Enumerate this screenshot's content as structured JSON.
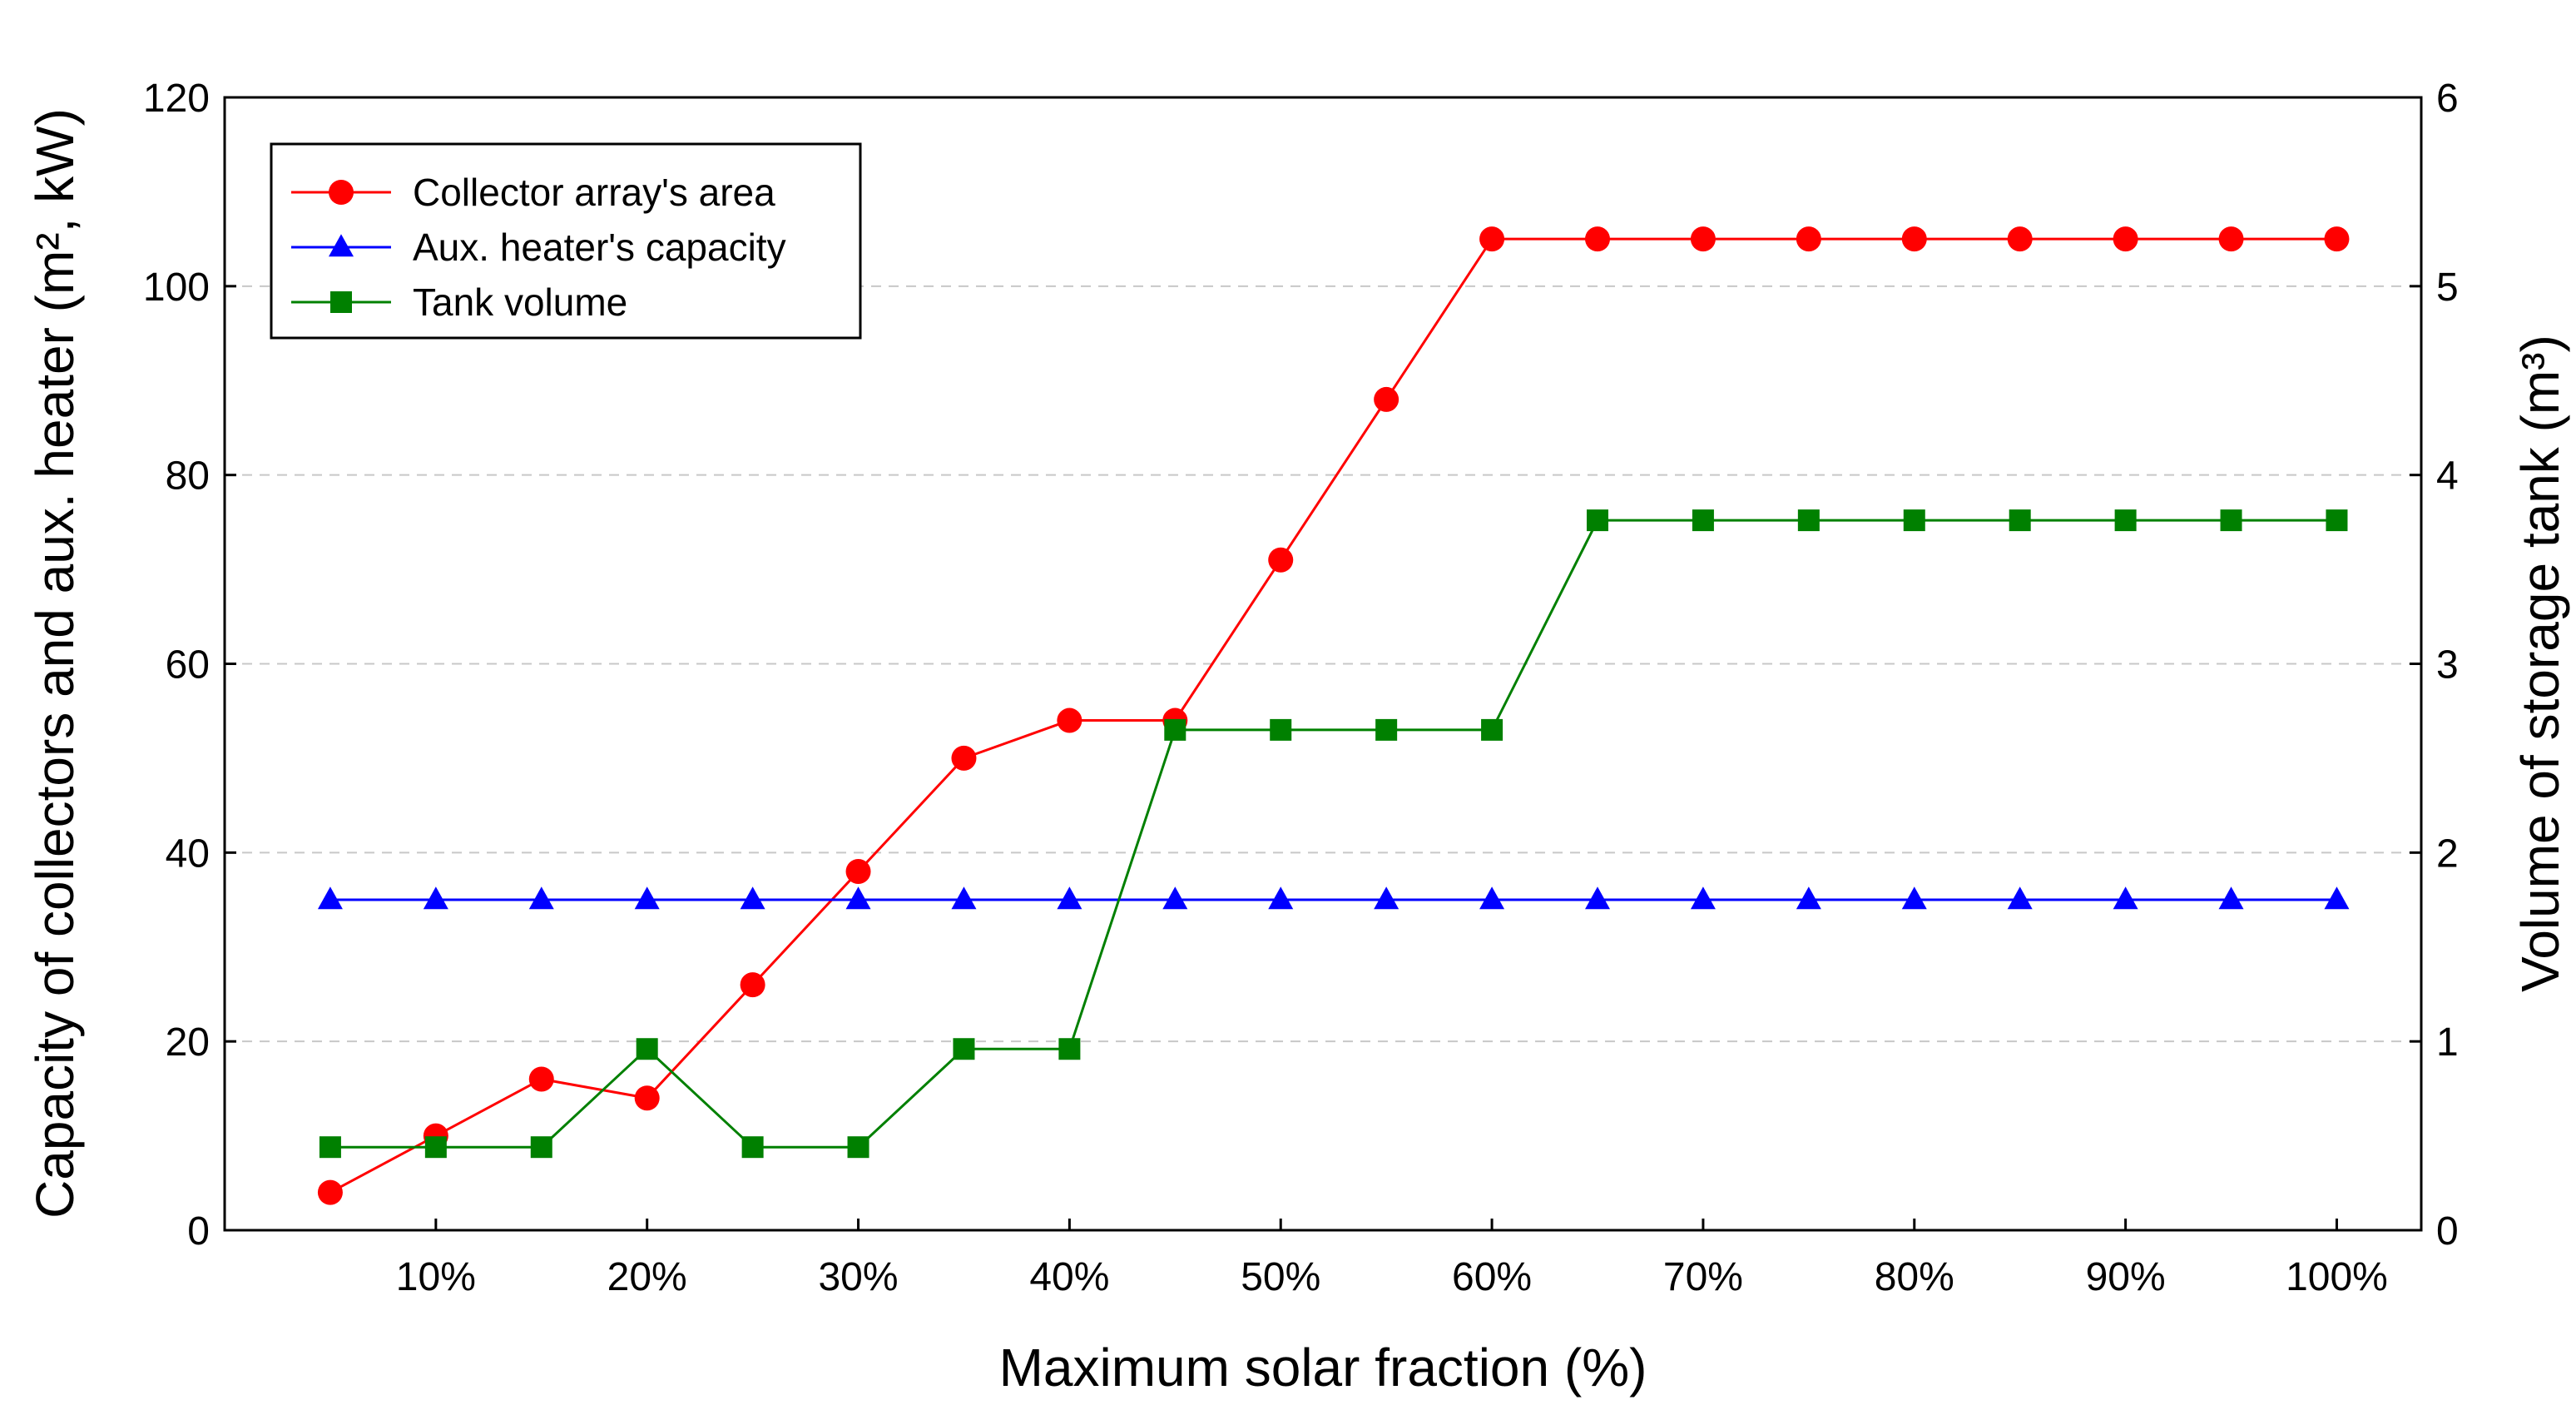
{
  "chart_data": {
    "type": "line",
    "title": "",
    "xlabel": "Maximum solar fraction (%)",
    "ylabel_left": "Capacity of collectors and aux. heater (m², kW)",
    "ylabel_right": "Volume of storage tank (m³)",
    "x": [
      5,
      10,
      15,
      20,
      25,
      30,
      35,
      40,
      45,
      50,
      55,
      60,
      65,
      70,
      75,
      80,
      85,
      90,
      95,
      100
    ],
    "x_tick_values": [
      10,
      20,
      30,
      40,
      50,
      60,
      70,
      80,
      90,
      100
    ],
    "x_tick_labels": [
      "10%",
      "20%",
      "30%",
      "40%",
      "50%",
      "60%",
      "70%",
      "80%",
      "90%",
      "100%"
    ],
    "xlim": [
      0,
      104
    ],
    "ylim_left": [
      0,
      120
    ],
    "y_ticks_left": [
      0,
      20,
      40,
      60,
      80,
      100,
      120
    ],
    "ylim_right": [
      0,
      6
    ],
    "y_ticks_right": [
      0,
      1,
      2,
      3,
      4,
      5,
      6
    ],
    "grid": "horizontal dashed",
    "legend_position": "top-left",
    "series": [
      {
        "name": "Collector array's area",
        "axis": "left",
        "color": "#ff0000",
        "marker": "circle",
        "values": [
          4,
          10,
          16,
          14,
          26,
          38,
          50,
          54,
          54,
          71,
          88,
          105,
          105,
          105,
          105,
          105,
          105,
          105,
          105,
          105
        ]
      },
      {
        "name": "Aux. heater's capacity",
        "axis": "left",
        "color": "#0000ff",
        "marker": "triangle",
        "values": [
          35,
          35,
          35,
          35,
          35,
          35,
          35,
          35,
          35,
          35,
          35,
          35,
          35,
          35,
          35,
          35,
          35,
          35,
          35,
          35
        ]
      },
      {
        "name": "Tank volume",
        "axis": "right",
        "color": "#008000",
        "marker": "square",
        "values": [
          0.44,
          0.44,
          0.44,
          0.96,
          0.44,
          0.44,
          0.96,
          0.96,
          2.65,
          2.65,
          2.65,
          2.65,
          3.76,
          3.76,
          3.76,
          3.76,
          3.76,
          3.76,
          3.76,
          3.76
        ]
      }
    ]
  }
}
